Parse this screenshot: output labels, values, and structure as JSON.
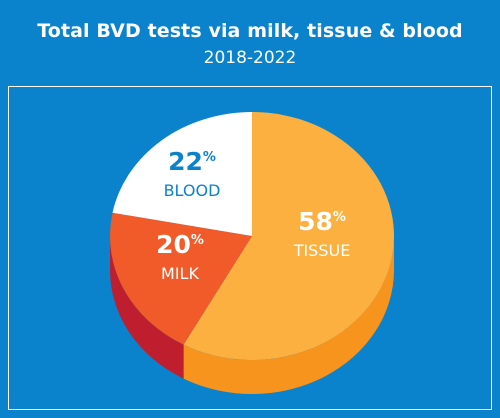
{
  "header": {
    "title": "Total BVD tests via milk, tissue & blood",
    "subtitle": "2018-2022"
  },
  "colors": {
    "background": "#0a82cc",
    "tissue_top": "#fbb040",
    "tissue_side": "#f7941d",
    "milk_top": "#f15a29",
    "milk_side": "#be1e2d",
    "blood_top": "#ffffff",
    "blood_label": "#0a82cc"
  },
  "chart_data": {
    "type": "pie",
    "title": "Total BVD tests via milk, tissue & blood",
    "subtitle": "2018-2022",
    "unit": "%",
    "slices": [
      {
        "label": "TISSUE",
        "value": 58,
        "display": "58"
      },
      {
        "label": "MILK",
        "value": 20,
        "display": "20"
      },
      {
        "label": "BLOOD",
        "value": 22,
        "display": "22"
      }
    ]
  }
}
